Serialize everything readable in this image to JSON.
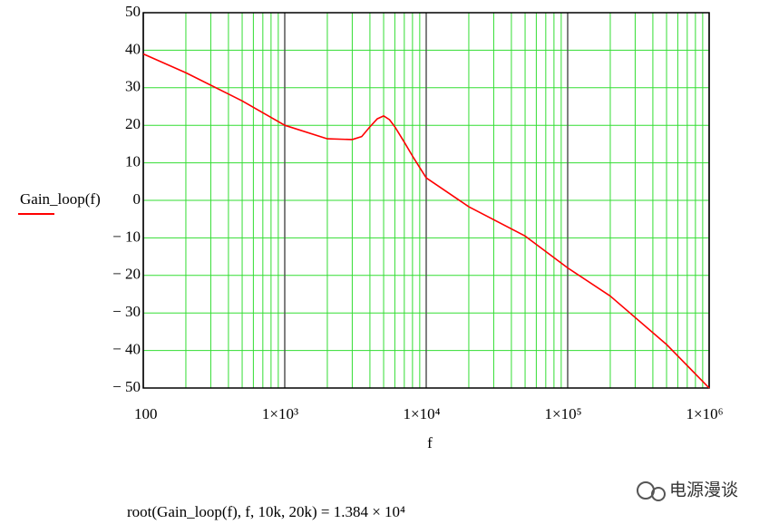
{
  "chart_data": {
    "type": "line",
    "log_x": true,
    "grid": true,
    "x_label": "f",
    "annotation": "root(Gain_loop(f), f, 10k, 20k) = 1.384 × 10⁴",
    "x": [
      100,
      200,
      500,
      1000,
      2000,
      3000,
      3500,
      4000,
      4500,
      5000,
      5500,
      6000,
      7000,
      8000,
      10000,
      20000,
      50000,
      100000,
      200000,
      500000,
      1000000
    ],
    "series": [
      {
        "name": "Gain_loop(f)",
        "color": "#ff0000",
        "values": [
          39,
          34,
          26.5,
          20,
          16.4,
          16.2,
          17,
          19.6,
          21.7,
          22.5,
          21.5,
          19.6,
          15.5,
          11.8,
          6,
          -1.7,
          -9.5,
          -18,
          -25.5,
          -38.4,
          -50
        ]
      }
    ],
    "xlim": [
      100,
      1000000
    ],
    "xticks": [
      100,
      {
        "value": 1000,
        "label": "1×10³"
      },
      {
        "value": 10000,
        "label": "1×10⁴"
      },
      {
        "value": 100000,
        "label": "1×10⁵"
      },
      {
        "value": 1000000,
        "label": "1×10⁶"
      }
    ],
    "ylim": [
      -50,
      50
    ],
    "yticks": [
      {
        "value": -50,
        "label": "− 50"
      },
      {
        "value": -40,
        "label": "− 40"
      },
      {
        "value": -30,
        "label": "− 30"
      },
      {
        "value": -20,
        "label": "− 20"
      },
      {
        "value": -10,
        "label": "− 10"
      },
      0,
      10,
      20,
      30,
      40,
      50
    ]
  },
  "watermark": "电源漫谈"
}
